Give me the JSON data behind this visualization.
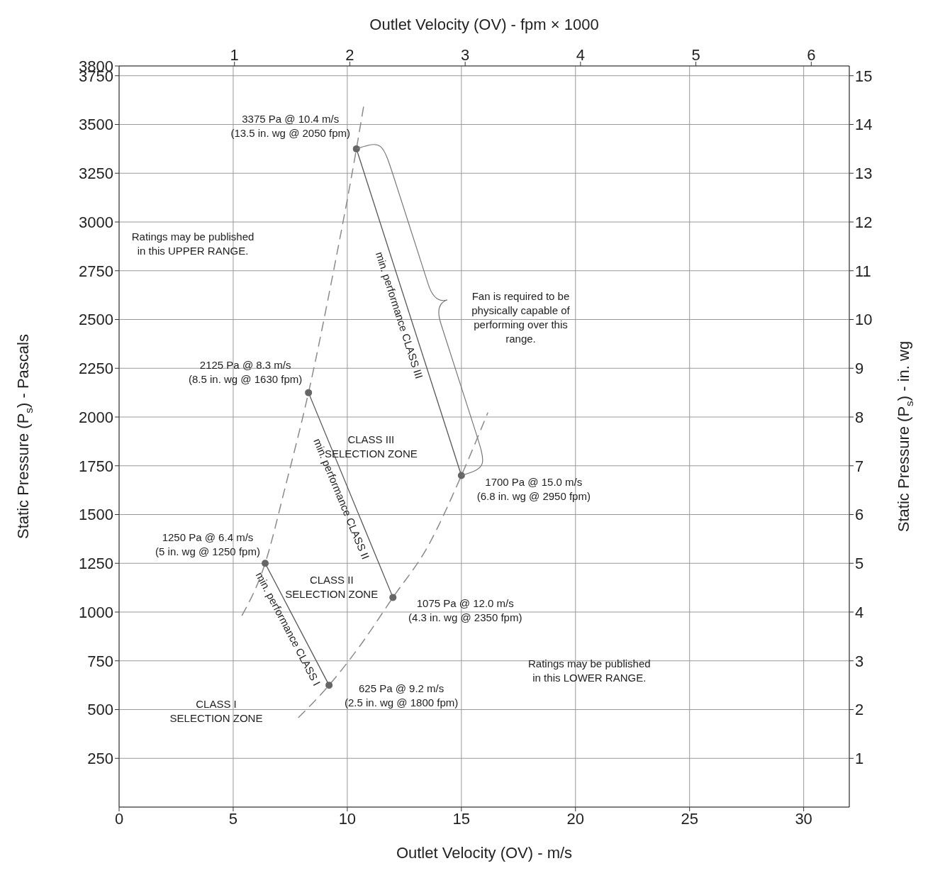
{
  "chart_data": {
    "type": "scatter",
    "xlabel": "Outlet Velocity (OV) - m/s",
    "x2label": "Outlet Velocity (OV) - fpm × 1000",
    "ylabel": "Static Pressure (P$_{s}$) - Pascals",
    "y2label": "Static Pressure (P$_{s}$) - in. wg",
    "xlim": [
      0,
      32
    ],
    "xticks": [
      0,
      5,
      10,
      15,
      20,
      25,
      30
    ],
    "x2lim": [
      0,
      6.33
    ],
    "x2ticks": [
      1,
      2,
      3,
      4,
      5,
      6
    ],
    "ylim": [
      0,
      3800
    ],
    "yticks": [
      250,
      500,
      750,
      1000,
      1250,
      1500,
      1750,
      2000,
      2250,
      2500,
      2750,
      3000,
      3250,
      3500,
      3750,
      3800
    ],
    "y2lim": [
      0,
      15.2
    ],
    "y2ticks": [
      1,
      2,
      3,
      4,
      5,
      6,
      7,
      8,
      9,
      10,
      11,
      12,
      13,
      14,
      15
    ],
    "grid": true,
    "legend": false,
    "marker": "circle",
    "series": [
      {
        "type": "line",
        "name": "min. performance CLASS I",
        "color": "#555555",
        "marker": "none",
        "x": [
          6.4,
          9.2
        ],
        "values": [
          1250,
          625
        ]
      },
      {
        "type": "line",
        "name": "min. performance CLASS II",
        "color": "#555555",
        "marker": "none",
        "x": [
          8.3,
          12.0
        ],
        "values": [
          2125,
          1075
        ]
      },
      {
        "type": "line",
        "name": "min. performance CLASS III",
        "color": "#555555",
        "marker": "none",
        "x": [
          10.4,
          15.0
        ],
        "values": [
          3375,
          1700
        ]
      },
      {
        "type": "line",
        "color": "#8a8a8a",
        "marker": "none",
        "line_style": "dashed",
        "x": [
          5.38,
          6.4,
          7.3,
          8.3,
          9.4,
          10.4,
          10.73
        ],
        "values": [
          981,
          1250,
          1650,
          2125,
          2750,
          3375,
          3602
        ]
      },
      {
        "type": "line",
        "color": "#8a8a8a",
        "marker": "none",
        "line_style": "dashed",
        "x": [
          7.85,
          9.2,
          10.5,
          12.0,
          13.5,
          15.0,
          16.16
        ],
        "values": [
          458,
          625,
          818,
          1075,
          1330,
          1700,
          2023
        ]
      },
      {
        "color": "#666666",
        "x": [
          6.4,
          8.3,
          9.2,
          10.4,
          12.0,
          15.0
        ],
        "values": [
          1250,
          2125,
          625,
          3375,
          1075,
          1700
        ]
      }
    ],
    "annotations": [
      {
        "text": "3375 Pa @ 10.4 m/s\n(13.5 in. wg @ 2050 fpm)",
        "x": 10.4,
        "y": 3375
      },
      {
        "text": "2125 Pa @ 8.3 m/s\n(8.5 in. wg @ 1630 fpm)",
        "x": 8.3,
        "y": 2125
      },
      {
        "text": "1700 Pa @ 15.0 m/s\n(6.8 in. wg @ 2950 fpm)",
        "x": 15.0,
        "y": 1700
      },
      {
        "text": "1250 Pa @ 6.4 m/s\n(5 in. wg @ 1250 fpm)",
        "x": 6.4,
        "y": 1250
      },
      {
        "text": "1075 Pa @ 12.0 m/s\n(4.3 in. wg @ 2350 fpm)",
        "x": 12.0,
        "y": 1075
      },
      {
        "text": "625 Pa @ 9.2 m/s\n(2.5 in. wg @ 1800 fpm)",
        "x": 9.2,
        "y": 625
      },
      "Ratings may be published\nin this UPPER RANGE.",
      "Ratings may be published\nin this LOWER RANGE.",
      "CLASS III\nSELECTION ZONE",
      "CLASS II\nSELECTION ZONE",
      "CLASS I\nSELECTION ZONE",
      "Fan is required to be\nphysically capable of\nperforming over this\nrange."
    ]
  }
}
